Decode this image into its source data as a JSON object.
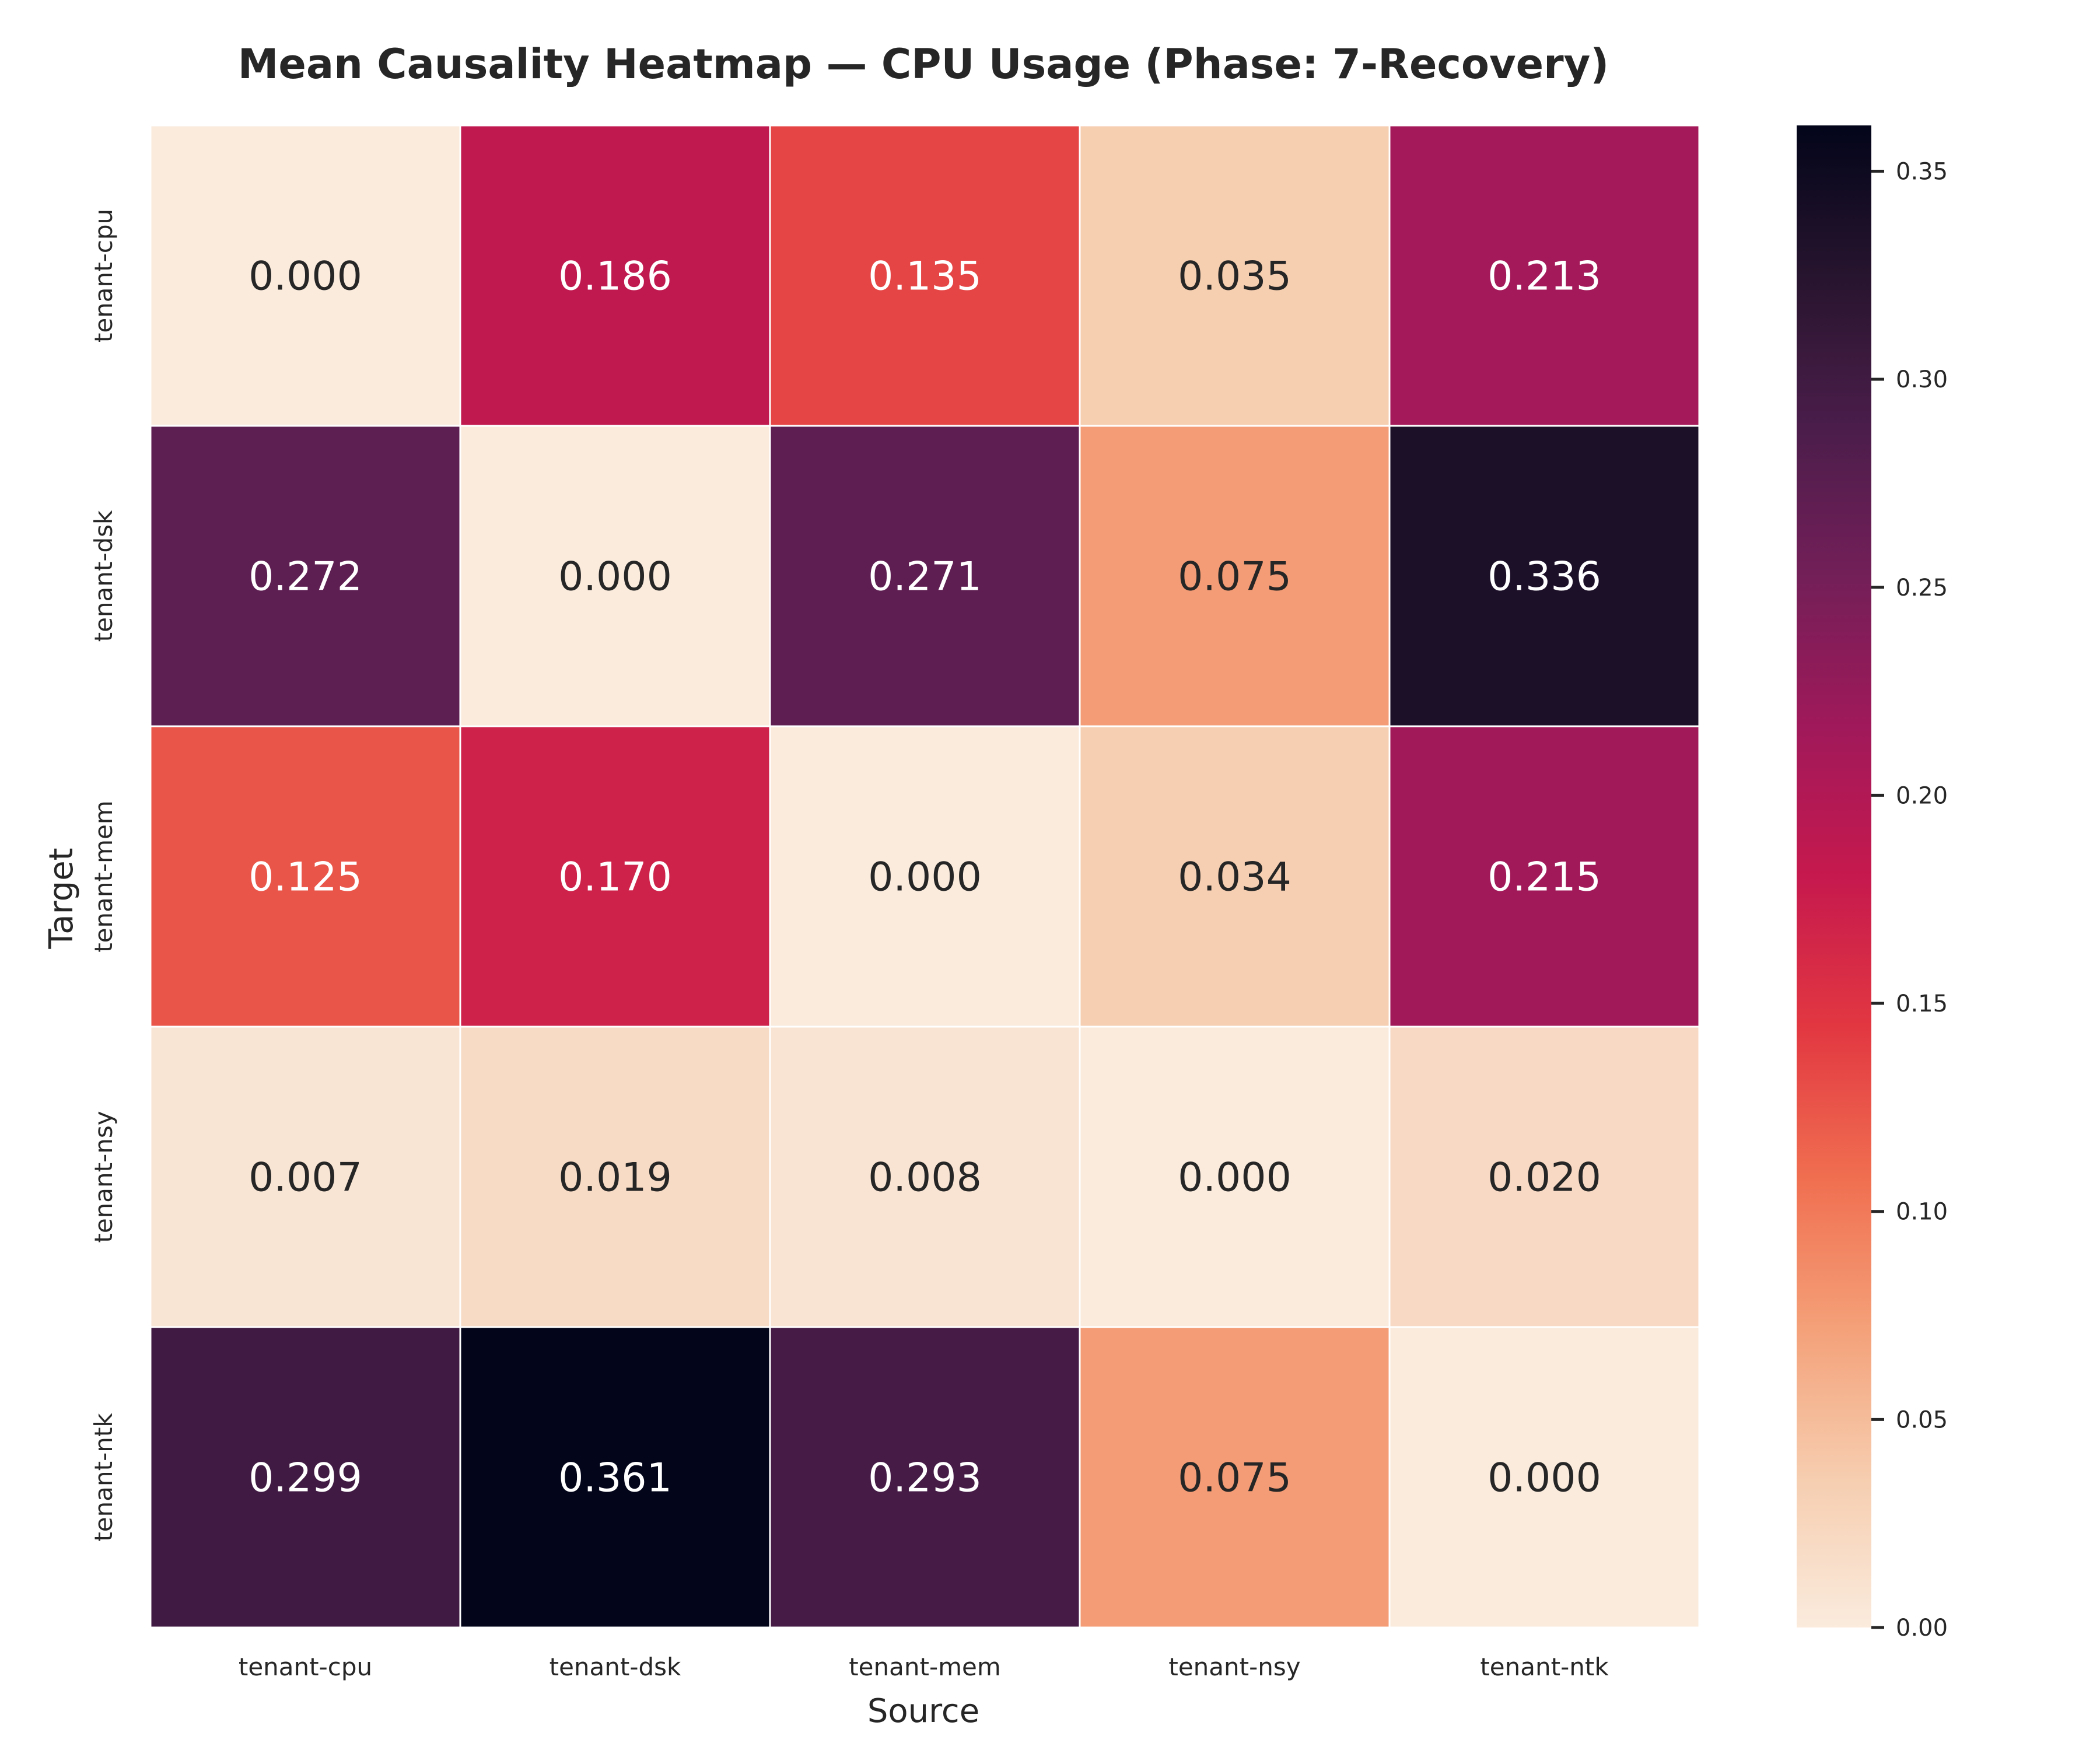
{
  "chart_data": {
    "type": "heatmap",
    "title": "Mean Causality Heatmap — CPU Usage (Phase: 7-Recovery)",
    "xlabel": "Source",
    "ylabel": "Target",
    "x_categories": [
      "tenant-cpu",
      "tenant-dsk",
      "tenant-mem",
      "tenant-nsy",
      "tenant-ntk"
    ],
    "y_categories": [
      "tenant-cpu",
      "tenant-dsk",
      "tenant-mem",
      "tenant-nsy",
      "tenant-ntk"
    ],
    "values": [
      [
        0.0,
        0.186,
        0.135,
        0.035,
        0.213
      ],
      [
        0.272,
        0.0,
        0.271,
        0.075,
        0.336
      ],
      [
        0.125,
        0.17,
        0.0,
        0.034,
        0.215
      ],
      [
        0.007,
        0.019,
        0.008,
        0.0,
        0.02
      ],
      [
        0.299,
        0.361,
        0.293,
        0.075,
        0.0
      ]
    ],
    "value_format": "0.000",
    "colormap": "rocket_r",
    "colorbar": {
      "range": [
        0.0,
        0.361
      ],
      "ticks": [
        0.0,
        0.05,
        0.1,
        0.15,
        0.2,
        0.25,
        0.3,
        0.35
      ],
      "tick_labels": [
        "0.00",
        "0.05",
        "0.10",
        "0.15",
        "0.20",
        "0.25",
        "0.30",
        "0.35"
      ]
    },
    "grid": false,
    "cell_borders": "#ffffff"
  }
}
